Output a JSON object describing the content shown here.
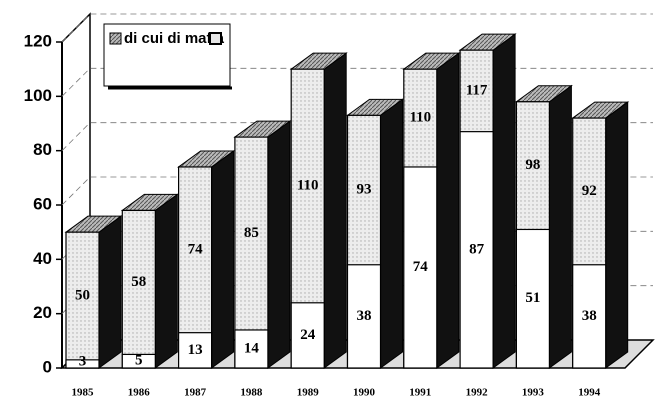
{
  "chart_data": {
    "type": "bar3d",
    "categories": [
      "1985",
      "1986",
      "1987",
      "1988",
      "1989",
      "1990",
      "1991",
      "1992",
      "1993",
      "1994"
    ],
    "series": [
      {
        "name": "di cui di mafia",
        "color": "#ffffff",
        "values": [
          3,
          5,
          13,
          14,
          24,
          38,
          74,
          87,
          51,
          38
        ]
      },
      {
        "color": "#e6e6e6",
        "values": [
          50,
          58,
          74,
          85,
          110,
          93,
          110,
          117,
          98,
          92
        ]
      }
    ],
    "ylim": [
      0,
      120
    ],
    "yticks": [
      0,
      20,
      40,
      60,
      80,
      100,
      120
    ],
    "grid": true
  }
}
